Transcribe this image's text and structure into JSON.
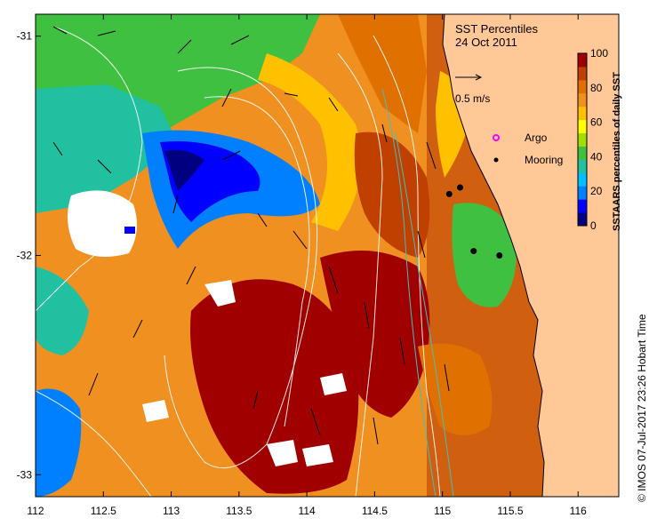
{
  "title": "SST Percentiles",
  "date": "24 Oct 2011",
  "velocity_scale_label": "0.5 m/s",
  "legend": {
    "argo_label": "Argo",
    "mooring_label": "Mooring",
    "argo_color": "#ff00ff",
    "mooring_color": "#000000"
  },
  "colorbar": {
    "title": "SSTAARS percentiles of daily SST",
    "ticks": [
      "0",
      "20",
      "40",
      "60",
      "80",
      "100"
    ],
    "colors": [
      "#000080",
      "#0000ff",
      "#0080ff",
      "#00c0ff",
      "#20c0a0",
      "#40c040",
      "#a0e000",
      "#ffff00",
      "#ffc000",
      "#f09020",
      "#e07000",
      "#c04000",
      "#a00000"
    ]
  },
  "credit": "© IMOS 07-Jul-2017 23:26 Hobart Time",
  "axes": {
    "x_ticks": [
      "112",
      "112.5",
      "113",
      "113.5",
      "114",
      "114.5",
      "115",
      "115.5",
      "116"
    ],
    "y_ticks": [
      "-31",
      "-32",
      "-33"
    ],
    "x_range": [
      112,
      116.3
    ],
    "y_range": [
      -33.1,
      -30.9
    ]
  },
  "colors": {
    "land": "#ffc896",
    "frame": "#000000"
  },
  "mooring_points": [
    {
      "lon": 115.05,
      "lat": -31.72
    },
    {
      "lon": 115.13,
      "lat": -31.69
    },
    {
      "lon": 115.23,
      "lat": -31.98
    },
    {
      "lon": 115.42,
      "lat": -32.0
    }
  ]
}
